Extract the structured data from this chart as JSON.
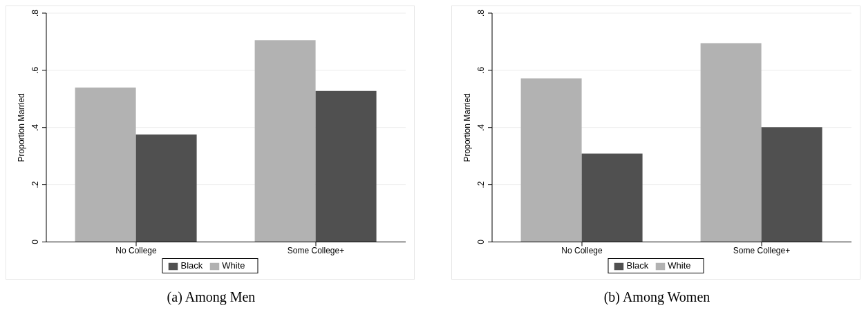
{
  "chart_data": [
    {
      "type": "bar",
      "categories": [
        "No College",
        "Some College+"
      ],
      "ylabel": "Proportion Married",
      "ylim": [
        0,
        0.8
      ],
      "yticks": [
        {
          "value": 0,
          "label": "0"
        },
        {
          "value": 0.2,
          "label": ".2"
        },
        {
          "value": 0.4,
          "label": ".4"
        },
        {
          "value": 0.6,
          "label": ".6"
        },
        {
          "value": 0.8,
          "label": ".8"
        }
      ],
      "grid": "y",
      "legend": "bottom",
      "annotations": [
        "(a) Among Men"
      ],
      "series": [
        {
          "name": "White",
          "color": "#b2b2b2",
          "values": [
            0.54,
            0.705
          ]
        },
        {
          "name": "Black",
          "color": "#505050",
          "values": [
            0.376,
            0.528
          ]
        }
      ]
    },
    {
      "type": "bar",
      "categories": [
        "No College",
        "Some College+"
      ],
      "ylabel": "Proportion Married",
      "ylim": [
        0,
        0.8
      ],
      "yticks": [
        {
          "value": 0,
          "label": "0"
        },
        {
          "value": 0.2,
          "label": ".2"
        },
        {
          "value": 0.4,
          "label": ".4"
        },
        {
          "value": 0.6,
          "label": ".6"
        },
        {
          "value": 0.8,
          "label": ".8"
        }
      ],
      "grid": "y",
      "legend": "bottom",
      "annotations": [
        "(b) Among Women"
      ],
      "series": [
        {
          "name": "White",
          "color": "#b2b2b2",
          "values": [
            0.572,
            0.695
          ]
        },
        {
          "name": "Black",
          "color": "#505050",
          "values": [
            0.309,
            0.401
          ]
        }
      ]
    }
  ]
}
